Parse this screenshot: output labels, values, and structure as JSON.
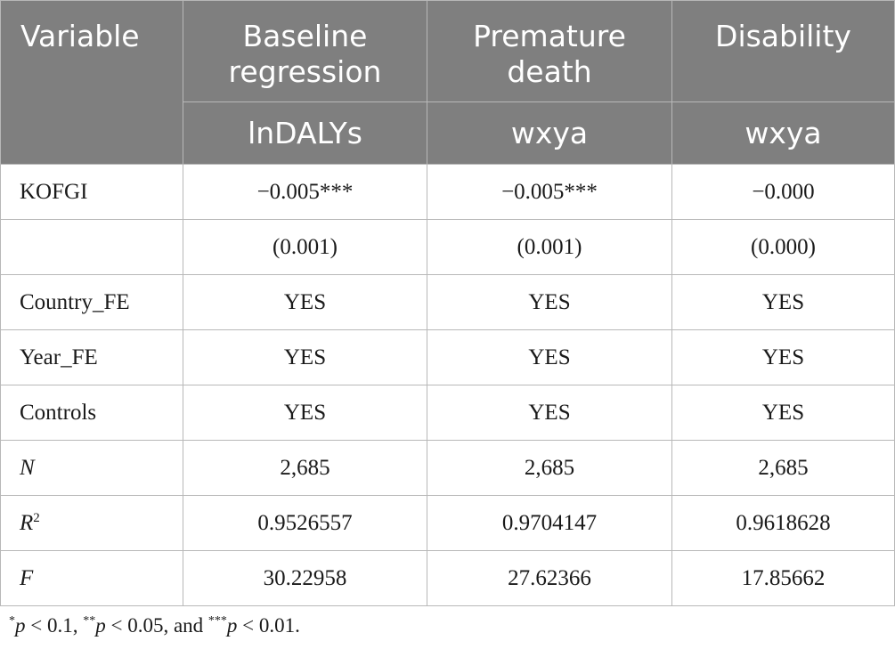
{
  "table": {
    "header": {
      "variable": "Variable",
      "columns": [
        "Baseline regression",
        "Premature death",
        "Disability"
      ],
      "dependent_vars": [
        "lnDALYs",
        "wxya",
        "wxya"
      ]
    },
    "rows": [
      {
        "label": "KOFGI",
        "values": [
          "−0.005***",
          "−0.005***",
          "−0.000"
        ]
      },
      {
        "label": "",
        "values": [
          "(0.001)",
          "(0.001)",
          "(0.000)"
        ]
      },
      {
        "label": "Country_FE",
        "values": [
          "YES",
          "YES",
          "YES"
        ]
      },
      {
        "label": "Year_FE",
        "values": [
          "YES",
          "YES",
          "YES"
        ]
      },
      {
        "label": "Controls",
        "values": [
          "YES",
          "YES",
          "YES"
        ]
      },
      {
        "label": "N",
        "values": [
          "2,685",
          "2,685",
          "2,685"
        ]
      },
      {
        "label": "R",
        "label_superscript": "2",
        "values": [
          "0.9526557",
          "0.9704147",
          "0.9618628"
        ]
      },
      {
        "label": "F",
        "values": [
          "30.22958",
          "27.62366",
          "17.85662"
        ]
      }
    ]
  },
  "footnote": {
    "star1": "*",
    "p1": "p",
    "t1": " < 0.1, ",
    "star2": "**",
    "p2": "p",
    "t2": " < 0.05, and ",
    "star3": "***",
    "p3": "p",
    "t3": " < 0.01."
  }
}
